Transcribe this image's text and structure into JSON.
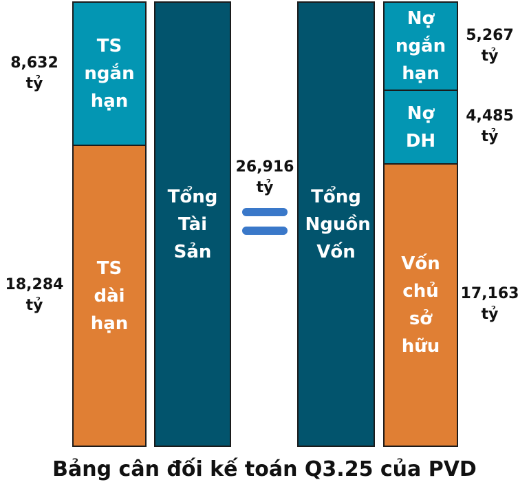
{
  "chart_data": {
    "type": "bar",
    "title": "Bảng cân đối kế toán Q3.25 của PVD",
    "total": {
      "value": "26,916",
      "unit": "tỷ",
      "value_num": 26916
    },
    "bars": [
      {
        "name": "assets-breakdown",
        "segments": [
          {
            "label": "TS ngắn hạn",
            "value": 8632,
            "value_label": "8,632",
            "unit": "tỷ",
            "color": "#0396b3"
          },
          {
            "label": "TS dài hạn",
            "value": 18284,
            "value_label": "18,284",
            "unit": "tỷ",
            "color": "#e07f34"
          }
        ]
      },
      {
        "name": "total-assets",
        "segments": [
          {
            "label": "Tổng Tài Sản",
            "value": 26916,
            "color": "#02546d"
          }
        ]
      },
      {
        "name": "total-capital",
        "segments": [
          {
            "label": "Tổng Nguồn Vốn",
            "value": 26916,
            "color": "#02546d"
          }
        ]
      },
      {
        "name": "capital-breakdown",
        "segments": [
          {
            "label": "Nợ ngắn hạn",
            "value": 5267,
            "value_label": "5,267",
            "unit": "tỷ",
            "color": "#0396b3"
          },
          {
            "label": "Nợ DH",
            "value": 4485,
            "value_label": "4,485",
            "unit": "tỷ",
            "color": "#0396b3"
          },
          {
            "label": "Vốn chủ sở hữu",
            "value": 17163,
            "value_label": "17,163",
            "unit": "tỷ",
            "color": "#e07f34"
          }
        ]
      }
    ],
    "equals_sign": "="
  }
}
